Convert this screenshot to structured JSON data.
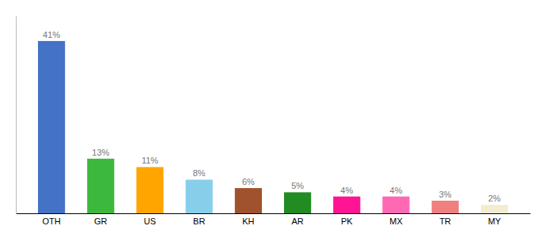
{
  "chart_data": {
    "type": "bar",
    "categories": [
      "OTH",
      "GR",
      "US",
      "BR",
      "KH",
      "AR",
      "PK",
      "MX",
      "TR",
      "MY"
    ],
    "values": [
      41,
      13,
      11,
      8,
      6,
      5,
      4,
      4,
      3,
      2
    ],
    "value_labels": [
      "41%",
      "13%",
      "11%",
      "8%",
      "6%",
      "5%",
      "4%",
      "4%",
      "3%",
      "2%"
    ],
    "colors": [
      "#4472C4",
      "#3CB83C",
      "#FFA500",
      "#87CEEB",
      "#A0522D",
      "#228B22",
      "#FF1493",
      "#FF69B4",
      "#F08080",
      "#F0EDD0"
    ],
    "ylim": [
      0,
      47
    ],
    "grid": false,
    "data_labels": true,
    "tick_labels": "x"
  }
}
